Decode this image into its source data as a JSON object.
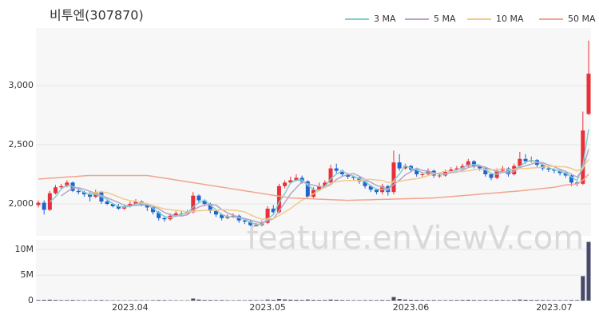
{
  "chart_data": [
    {
      "type": "candlestick",
      "title": "비투엔(307870)",
      "watermark": "feature.enViewV.com",
      "up_color": "#e8303a",
      "down_color": "#1e64d2",
      "ylim": [
        1730,
        3486
      ],
      "yticks": [
        {
          "value": 2000,
          "label": "2,000"
        },
        {
          "value": 2500,
          "label": "2,500"
        },
        {
          "value": 3000,
          "label": "3,000"
        }
      ],
      "open": [
        1990,
        2010,
        1950,
        2090,
        2140,
        2150,
        2180,
        2110,
        2100,
        2080,
        2060,
        2100,
        2020,
        2000,
        1980,
        1960,
        1980,
        2000,
        2020,
        1990,
        1970,
        1930,
        1880,
        1870,
        1900,
        1920,
        1920,
        1930,
        2070,
        2030,
        2000,
        1940,
        1910,
        1880,
        1890,
        1900,
        1860,
        1850,
        1820,
        1820,
        1840,
        1960,
        1930,
        2150,
        2180,
        2200,
        2220,
        2190,
        2060,
        2120,
        2150,
        2180,
        2300,
        2280,
        2250,
        2230,
        2220,
        2190,
        2150,
        2120,
        2100,
        2150,
        2100,
        2350,
        2300,
        2320,
        2290,
        2250,
        2250,
        2280,
        2240,
        2240,
        2270,
        2290,
        2300,
        2320,
        2360,
        2320,
        2300,
        2250,
        2220,
        2280,
        2300,
        2250,
        2320,
        2380,
        2360,
        2370,
        2330,
        2300,
        2290,
        2280,
        2260,
        2240,
        2180,
        2170,
        2760
      ],
      "high": [
        2030,
        2030,
        2110,
        2160,
        2170,
        2200,
        2190,
        2130,
        2110,
        2100,
        2120,
        2110,
        2040,
        2010,
        2000,
        1990,
        2020,
        2040,
        2030,
        2000,
        1980,
        1940,
        1900,
        1920,
        1940,
        1940,
        1950,
        2100,
        2080,
        2040,
        2010,
        1950,
        1920,
        1910,
        1920,
        1910,
        1880,
        1860,
        1840,
        1860,
        1980,
        1990,
        2170,
        2200,
        2230,
        2250,
        2240,
        2200,
        2140,
        2180,
        2200,
        2330,
        2340,
        2290,
        2260,
        2240,
        2230,
        2200,
        2160,
        2130,
        2170,
        2160,
        2450,
        2420,
        2340,
        2330,
        2300,
        2270,
        2300,
        2290,
        2260,
        2290,
        2310,
        2320,
        2340,
        2380,
        2370,
        2330,
        2310,
        2260,
        2300,
        2320,
        2310,
        2340,
        2440,
        2420,
        2400,
        2380,
        2340,
        2310,
        2300,
        2290,
        2270,
        2250,
        2190,
        2780,
        3380
      ],
      "low": [
        1970,
        1910,
        1940,
        2080,
        2130,
        2140,
        2100,
        2080,
        2060,
        2020,
        2050,
        2000,
        1990,
        1970,
        1950,
        1950,
        1970,
        1990,
        1980,
        1940,
        1910,
        1860,
        1850,
        1860,
        1890,
        1900,
        1910,
        1920,
        2010,
        1980,
        1920,
        1890,
        1860,
        1870,
        1880,
        1840,
        1830,
        1810,
        1810,
        1810,
        1830,
        1920,
        1920,
        2130,
        2170,
        2190,
        2170,
        2040,
        2050,
        2110,
        2140,
        2170,
        2260,
        2230,
        2210,
        2200,
        2170,
        2130,
        2100,
        2080,
        2080,
        2070,
        2080,
        2280,
        2290,
        2270,
        2230,
        2230,
        2240,
        2220,
        2220,
        2230,
        2260,
        2280,
        2290,
        2310,
        2300,
        2280,
        2230,
        2200,
        2210,
        2270,
        2230,
        2240,
        2310,
        2340,
        2350,
        2310,
        2280,
        2270,
        2260,
        2240,
        2220,
        2150,
        2150,
        2160,
        2750
      ],
      "close": [
        2010,
        1950,
        2090,
        2140,
        2150,
        2180,
        2110,
        2100,
        2080,
        2060,
        2100,
        2020,
        2000,
        1980,
        1960,
        1980,
        2000,
        2020,
        1990,
        1970,
        1930,
        1880,
        1870,
        1900,
        1920,
        1920,
        1930,
        2070,
        2030,
        2000,
        1940,
        1910,
        1880,
        1890,
        1900,
        1860,
        1850,
        1820,
        1820,
        1840,
        1960,
        1930,
        2150,
        2180,
        2200,
        2220,
        2190,
        2060,
        2120,
        2150,
        2180,
        2300,
        2280,
        2250,
        2230,
        2220,
        2190,
        2150,
        2120,
        2100,
        2150,
        2100,
        2350,
        2300,
        2320,
        2290,
        2250,
        2250,
        2280,
        2240,
        2240,
        2270,
        2290,
        2300,
        2320,
        2360,
        2320,
        2300,
        2250,
        2220,
        2280,
        2300,
        2250,
        2320,
        2380,
        2360,
        2370,
        2330,
        2300,
        2290,
        2280,
        2260,
        2240,
        2180,
        2170,
        2620,
        3100
      ],
      "series": [
        {
          "name": "3 MA",
          "color": "#7ecfcf",
          "values": [
            null,
            null,
            2017,
            2060,
            2127,
            2157,
            2147,
            2130,
            2097,
            2080,
            2080,
            2060,
            2040,
            2000,
            1980,
            1973,
            1980,
            2000,
            2003,
            1993,
            1963,
            1927,
            1893,
            1883,
            1897,
            1913,
            1923,
            1973,
            2010,
            2033,
            1990,
            1950,
            1910,
            1893,
            1890,
            1883,
            1870,
            1843,
            1830,
            1827,
            1873,
            1910,
            2013,
            2087,
            2177,
            2200,
            2203,
            2157,
            2123,
            2110,
            2150,
            2210,
            2253,
            2277,
            2253,
            2233,
            2213,
            2187,
            2153,
            2123,
            2123,
            2117,
            2200,
            2250,
            2323,
            2303,
            2287,
            2263,
            2260,
            2257,
            2253,
            2250,
            2267,
            2287,
            2303,
            2327,
            2333,
            2327,
            2290,
            2257,
            2250,
            2267,
            2277,
            2290,
            2317,
            2353,
            2370,
            2353,
            2333,
            2307,
            2290,
            2277,
            2260,
            2227,
            2197,
            2323,
            2630
          ]
        },
        {
          "name": "5 MA",
          "color": "#b9a4c9",
          "values": [
            null,
            null,
            null,
            null,
            2068,
            2102,
            2134,
            2136,
            2124,
            2106,
            2090,
            2072,
            2052,
            2032,
            2012,
            1988,
            1984,
            1988,
            1990,
            1992,
            1982,
            1958,
            1928,
            1910,
            1900,
            1898,
            1908,
            1948,
            1974,
            1990,
            1994,
            1990,
            1952,
            1924,
            1904,
            1888,
            1876,
            1864,
            1850,
            1838,
            1858,
            1874,
            1940,
            2012,
            2084,
            2136,
            2188,
            2170,
            2158,
            2148,
            2140,
            2162,
            2206,
            2232,
            2248,
            2256,
            2234,
            2208,
            2182,
            2156,
            2142,
            2124,
            2164,
            2200,
            2244,
            2272,
            2302,
            2282,
            2278,
            2262,
            2252,
            2256,
            2264,
            2268,
            2284,
            2308,
            2318,
            2320,
            2310,
            2290,
            2274,
            2270,
            2260,
            2274,
            2306,
            2322,
            2336,
            2352,
            2348,
            2330,
            2314,
            2292,
            2274,
            2250,
            2226,
            2294,
            2462
          ]
        },
        {
          "name": "10 MA",
          "color": "#f3c98a",
          "values": [
            null,
            null,
            null,
            null,
            null,
            null,
            null,
            null,
            null,
            2087,
            2096,
            2103,
            2094,
            2078,
            2059,
            2039,
            2028,
            2020,
            2011,
            2002,
            1985,
            1971,
            1958,
            1950,
            1946,
            1940,
            1933,
            1938,
            1942,
            1945,
            1946,
            1949,
            1950,
            1949,
            1947,
            1941,
            1933,
            1908,
            1887,
            1871,
            1873,
            1875,
            1902,
            1931,
            1961,
            1997,
            2031,
            2055,
            2085,
            2116,
            2138,
            2175,
            2188,
            2195,
            2198,
            2198,
            2198,
            2207,
            2207,
            2202,
            2199,
            2179,
            2186,
            2191,
            2200,
            2207,
            2213,
            2223,
            2239,
            2253,
            2262,
            2279,
            2273,
            2273,
            2273,
            2280,
            2287,
            2292,
            2289,
            2287,
            2291,
            2294,
            2290,
            2292,
            2298,
            2298,
            2303,
            2306,
            2311,
            2318,
            2318,
            2314,
            2313,
            2299,
            2278,
            2304,
            2377
          ]
        },
        {
          "name": "50 MA",
          "color": "#f2a48f",
          "values": [
            2210,
            2213,
            2217,
            2220,
            2223,
            2227,
            2230,
            2233,
            2237,
            2240,
            2240,
            2240,
            2240,
            2240,
            2240,
            2240,
            2240,
            2240,
            2240,
            2240,
            2232,
            2225,
            2217,
            2210,
            2202,
            2194,
            2187,
            2179,
            2172,
            2164,
            2156,
            2149,
            2141,
            2134,
            2126,
            2118,
            2111,
            2103,
            2096,
            2088,
            2080,
            2073,
            2065,
            2058,
            2050,
            2048,
            2046,
            2044,
            2042,
            2040,
            2038,
            2036,
            2034,
            2032,
            2030,
            2031,
            2033,
            2034,
            2035,
            2037,
            2038,
            2039,
            2041,
            2042,
            2043,
            2045,
            2046,
            2047,
            2049,
            2050,
            2054,
            2058,
            2062,
            2066,
            2070,
            2074,
            2078,
            2082,
            2086,
            2090,
            2094,
            2098,
            2102,
            2106,
            2110,
            2115,
            2120,
            2125,
            2130,
            2135,
            2140,
            2150,
            2160,
            2165,
            2170,
            2200,
            2250
          ]
        }
      ]
    },
    {
      "type": "bar",
      "color": "#474a6b",
      "ylim": [
        0,
        11900000
      ],
      "yticks": [
        0,
        {
          "value": 5000000,
          "label": "5M"
        },
        {
          "value": 10000000,
          "label": "10M"
        }
      ],
      "categories": [
        null,
        null,
        null,
        null,
        null,
        null,
        null,
        null,
        null,
        null,
        null,
        null,
        null,
        null,
        null,
        null,
        "2023.04",
        null,
        null,
        null,
        null,
        null,
        null,
        null,
        null,
        null,
        null,
        null,
        null,
        null,
        null,
        null,
        null,
        null,
        null,
        null,
        null,
        null,
        null,
        null,
        "2023.05",
        null,
        null,
        null,
        null,
        null,
        null,
        null,
        null,
        null,
        null,
        null,
        null,
        null,
        null,
        null,
        null,
        null,
        null,
        null,
        null,
        null,
        null,
        null,
        null,
        "2023.06",
        null,
        null,
        null,
        null,
        null,
        null,
        null,
        null,
        null,
        null,
        null,
        null,
        null,
        null,
        null,
        null,
        null,
        null,
        null,
        null,
        null,
        null,
        null,
        null,
        "2023.07",
        null,
        null,
        null,
        null,
        null,
        null
      ],
      "values": [
        120000,
        150000,
        180000,
        140000,
        100000,
        110000,
        130000,
        90000,
        80000,
        90000,
        100000,
        110000,
        80000,
        70000,
        70000,
        60000,
        70000,
        80000,
        70000,
        60000,
        90000,
        120000,
        100000,
        80000,
        70000,
        60000,
        70000,
        400000,
        200000,
        130000,
        120000,
        100000,
        110000,
        80000,
        70000,
        90000,
        80000,
        110000,
        90000,
        80000,
        200000,
        150000,
        300000,
        220000,
        180000,
        160000,
        130000,
        200000,
        140000,
        120000,
        130000,
        200000,
        160000,
        120000,
        100000,
        90000,
        90000,
        100000,
        110000,
        100000,
        120000,
        110000,
        700000,
        300000,
        200000,
        160000,
        150000,
        120000,
        110000,
        120000,
        100000,
        100000,
        110000,
        120000,
        130000,
        160000,
        120000,
        110000,
        120000,
        110000,
        130000,
        120000,
        100000,
        140000,
        200000,
        160000,
        130000,
        120000,
        110000,
        100000,
        90000,
        100000,
        90000,
        120000,
        110000,
        4800000,
        11500000
      ]
    }
  ]
}
